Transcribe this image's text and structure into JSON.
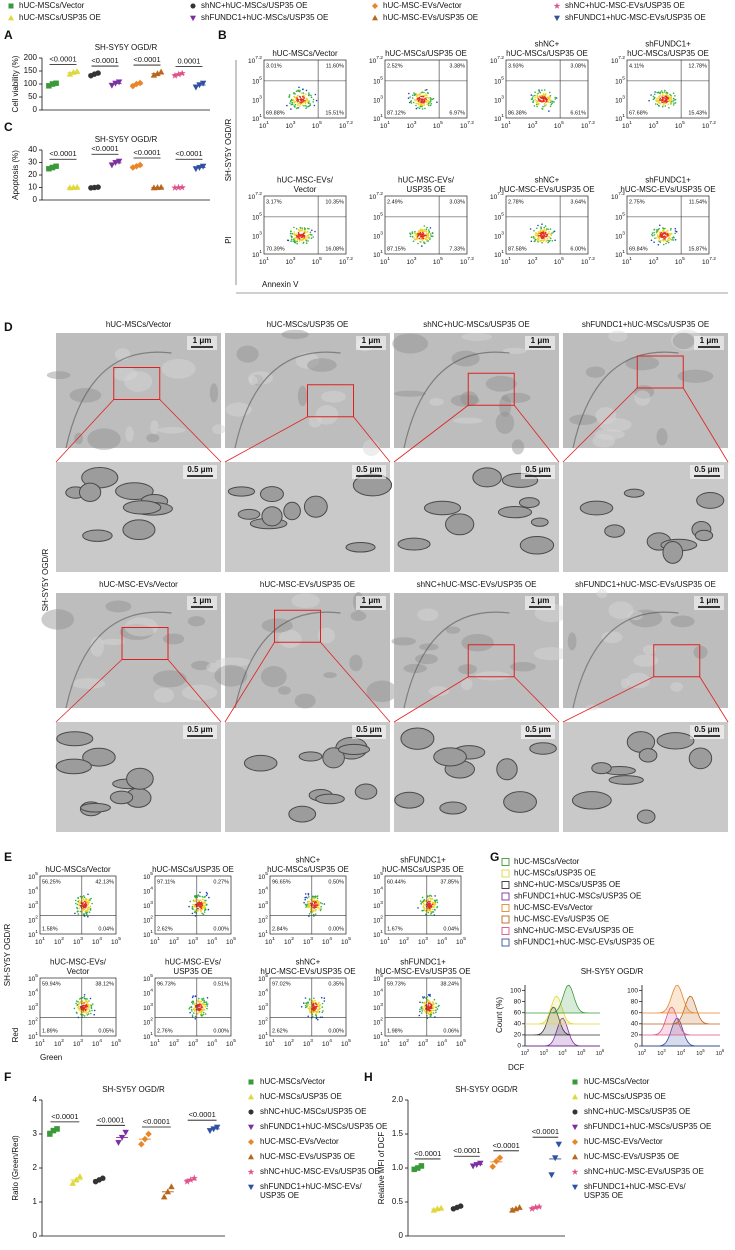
{
  "panel_labels": [
    "A",
    "B",
    "C",
    "D",
    "E",
    "F",
    "G",
    "H"
  ],
  "chart_data": [
    {
      "type": "dot",
      "title": "SH-SY5Y OGD/R",
      "y_label": "Cell viability (%)",
      "ylim": [
        0,
        200
      ],
      "yticks": [
        0,
        50,
        100,
        150,
        200
      ],
      "p_labels": [
        "<0.0001",
        "<0.0001",
        "<0.0001",
        "0.0001"
      ],
      "series": [
        {
          "name": "hUC-MSCs/Vector",
          "color": "#3a9a3a",
          "marker": "square",
          "values": [
            93,
            100,
            103
          ]
        },
        {
          "name": "hUC-MSCs/USP35 OE",
          "color": "#e0d83a",
          "marker": "tri-up",
          "values": [
            138,
            145,
            148
          ]
        },
        {
          "name": "shNC+hUC-MSCs/USP35 OE",
          "color": "#333333",
          "marker": "circle",
          "values": [
            132,
            138,
            142
          ]
        },
        {
          "name": "shFUNDC1+hUC-MSCs/USP35 OE",
          "color": "#7b2fa0",
          "marker": "tri-down",
          "values": [
            95,
            103,
            108
          ]
        },
        {
          "name": "hUC-MSC-EVs/Vector",
          "color": "#e8862a",
          "marker": "diamond",
          "values": [
            92,
            100,
            104
          ]
        },
        {
          "name": "hUC-MSC-EVs/USP35 OE",
          "color": "#b8661c",
          "marker": "tri-up",
          "values": [
            134,
            140,
            146
          ]
        },
        {
          "name": "shNC+hUC-MSC-EVs/USP35 OE",
          "color": "#e0508a",
          "marker": "star",
          "values": [
            132,
            137,
            141
          ]
        },
        {
          "name": "shFUNDC1+hUC-MSC-EVs/USP35 OE",
          "color": "#3050a0",
          "marker": "tri-down",
          "values": [
            88,
            97,
            103
          ]
        }
      ]
    },
    {
      "type": "dot",
      "title": "SH-SY5Y OGD/R",
      "y_label": "Apoptosis (%)",
      "ylim": [
        0,
        40
      ],
      "yticks": [
        0,
        10,
        20,
        30,
        40
      ],
      "p_labels": [
        "<0.0001",
        "<0.0001",
        "<0.0001",
        "<0.0001"
      ],
      "series": [
        {
          "color": "#3a9a3a",
          "marker": "square",
          "values": [
            25,
            26,
            27
          ]
        },
        {
          "color": "#e0d83a",
          "marker": "tri-up",
          "values": [
            9.8,
            10,
            10.2
          ]
        },
        {
          "color": "#333333",
          "marker": "circle",
          "values": [
            9.7,
            10,
            10.3
          ]
        },
        {
          "color": "#7b2fa0",
          "marker": "tri-down",
          "values": [
            28,
            30,
            31
          ]
        },
        {
          "color": "#e8862a",
          "marker": "diamond",
          "values": [
            26,
            27,
            28
          ]
        },
        {
          "color": "#b8661c",
          "marker": "tri-up",
          "values": [
            9.8,
            10,
            10.2
          ]
        },
        {
          "color": "#e0508a",
          "marker": "star",
          "values": [
            9.8,
            10,
            10.1
          ]
        },
        {
          "color": "#3050a0",
          "marker": "tri-down",
          "values": [
            25,
            26,
            27
          ]
        }
      ]
    },
    {
      "type": "dot",
      "title": "SH-SY5Y OGD/R",
      "y_label": "Ratio (Green/Red)",
      "ylim": [
        0,
        4
      ],
      "yticks": [
        0,
        1,
        2,
        3,
        4
      ],
      "p_labels": [
        "<0.0001",
        "<0.0001",
        "<0.0001",
        "<0.0001"
      ],
      "series": [
        {
          "name": "hUC-MSCs/Vector",
          "color": "#3a9a3a",
          "marker": "square",
          "values": [
            3.0,
            3.1,
            3.15
          ]
        },
        {
          "name": "hUC-MSCs/USP35 OE",
          "color": "#e0d83a",
          "marker": "tri-up",
          "values": [
            1.55,
            1.65,
            1.75
          ]
        },
        {
          "name": "shNC+hUC-MSCs/USP35 OE",
          "color": "#333333",
          "marker": "circle",
          "values": [
            1.6,
            1.65,
            1.7
          ]
        },
        {
          "name": "shFUNDC1+hUC-MSCs/USP35 OE",
          "color": "#7b2fa0",
          "marker": "tri-down",
          "values": [
            2.75,
            2.9,
            3.05
          ]
        },
        {
          "name": "hUC-MSC-EVs/Vector",
          "color": "#e8862a",
          "marker": "diamond",
          "values": [
            2.7,
            2.85,
            3.0
          ]
        },
        {
          "name": "hUC-MSC-EVs/USP35 OE",
          "color": "#b8661c",
          "marker": "tri-up",
          "values": [
            1.15,
            1.3,
            1.45
          ]
        },
        {
          "name": "shNC+hUC-MSC-EVs/USP35 OE",
          "color": "#e0508a",
          "marker": "star",
          "values": [
            1.6,
            1.65,
            1.7
          ]
        },
        {
          "name": "shFUNDC1+hUC-MSC-EVs/\nUSP35 OE",
          "color": "#3050a0",
          "marker": "tri-down",
          "values": [
            3.1,
            3.15,
            3.2
          ]
        }
      ]
    },
    {
      "type": "dot",
      "title": "SH-SY5Y OGD/R",
      "y_label": "Relative MFI of DCF",
      "ylim": [
        0,
        2
      ],
      "yticks": [
        0,
        0.5,
        {
          "value": 1,
          "label": "1.0"
        },
        1.5,
        {
          "value": 2,
          "label": "2.0"
        }
      ],
      "p_labels": [
        "<0.0001",
        "<0.0001",
        "<0.0001",
        "<0.0001"
      ],
      "series": [
        {
          "name": "hUC-MSCs/Vector",
          "color": "#3a9a3a",
          "marker": "square",
          "values": [
            0.98,
            1.0,
            1.03
          ]
        },
        {
          "name": "hUC-MSCs/USP35 OE",
          "color": "#e0d83a",
          "marker": "tri-up",
          "values": [
            0.38,
            0.4,
            0.41
          ]
        },
        {
          "name": "shNC+hUC-MSCs/USP35 OE",
          "color": "#333333",
          "marker": "circle",
          "values": [
            0.4,
            0.42,
            0.44
          ]
        },
        {
          "name": "shFUNDC1+hUC-MSCs/USP35 OE",
          "color": "#7b2fa0",
          "marker": "tri-down",
          "values": [
            1.03,
            1.05,
            1.07
          ]
        },
        {
          "name": "hUC-MSC-EVs/Vector",
          "color": "#e8862a",
          "marker": "diamond",
          "values": [
            1.02,
            1.1,
            1.15
          ]
        },
        {
          "name": "hUC-MSC-EVs/USP35 OE",
          "color": "#b8661c",
          "marker": "tri-up",
          "values": [
            0.38,
            0.4,
            0.42
          ]
        },
        {
          "name": "shNC+hUC-MSC-EVs/USP35 OE",
          "color": "#e0508a",
          "marker": "star",
          "values": [
            0.4,
            0.42,
            0.43
          ]
        },
        {
          "name": "shFUNDC1+hUC-MSC-EVs/\nUSP35 OE",
          "color": "#3050a0",
          "marker": "tri-down",
          "values": [
            0.9,
            1.15,
            1.35
          ]
        }
      ]
    }
  ],
  "flow_annexin": {
    "row_label": "SH-SY5Y OGD/R",
    "y_label": "PI",
    "x_label": "Annexin V",
    "ticks": [
      {
        "base": "10",
        "exp": "1"
      },
      {
        "base": "10",
        "exp": "3"
      },
      {
        "base": "10",
        "exp": "5"
      },
      {
        "base": "10",
        "exp": "7.2"
      }
    ],
    "plots": [
      {
        "title": [
          "hUC-MSCs/Vector"
        ],
        "quadrants": [
          "3.01%",
          "11.60%",
          "69.88%",
          "15.51%"
        ]
      },
      {
        "title": [
          "hUC-MSCs/USP35 OE"
        ],
        "quadrants": [
          "2.52%",
          "3.38%",
          "87.12%",
          "6.97%"
        ]
      },
      {
        "title": [
          "shNC+",
          "hUC-MSCs/USP35 OE"
        ],
        "quadrants": [
          "3.93%",
          "3.08%",
          "86.38%",
          "6.61%"
        ]
      },
      {
        "title": [
          "shFUNDC1+",
          "hUC-MSCs/USP35 OE"
        ],
        "quadrants": [
          "4.11%",
          "12.78%",
          "67.68%",
          "15.43%"
        ]
      },
      {
        "title": [
          "hUC-MSC-EVs/",
          "Vector"
        ],
        "quadrants": [
          "3.17%",
          "10.35%",
          "70.39%",
          "16.08%"
        ]
      },
      {
        "title": [
          "hUC-MSC-EVs/",
          "USP35 OE"
        ],
        "quadrants": [
          "2.49%",
          "3.03%",
          "87.15%",
          "7.33%"
        ]
      },
      {
        "title": [
          "shNC+",
          "hUC-MSC-EVs/USP35 OE"
        ],
        "quadrants": [
          "2.78%",
          "3.64%",
          "87.58%",
          "6.00%"
        ]
      },
      {
        "title": [
          "shFUNDC1+",
          "hUC-MSC-EVs/USP35 OE"
        ],
        "quadrants": [
          "2.75%",
          "11.54%",
          "69.84%",
          "15.87%"
        ]
      }
    ]
  },
  "em": {
    "row_label": "SH-SY5Y OGD/R",
    "scale_main": "1 μm",
    "scale_zoom": "0.5 μm",
    "titles": [
      "hUC-MSCs/Vector",
      "hUC-MSCs/USP35 OE",
      "shNC+hUC-MSCs/USP35 OE",
      "shFUNDC1+hUC-MSCs/USP35 OE",
      "hUC-MSC-EVs/Vector",
      "hUC-MSC-EVs/USP35 OE",
      "shNC+hUC-MSC-EVs/USP35 OE",
      "shFUNDC1+hUC-MSC-EVs/USP35 OE"
    ]
  },
  "flow_jc1": {
    "row_label": "SH-SY5Y OGD/R",
    "y_label": "Red",
    "x_label": "Green",
    "ticks": [
      {
        "base": "10",
        "exp": "1"
      },
      {
        "base": "10",
        "exp": "2"
      },
      {
        "base": "10",
        "exp": "3"
      },
      {
        "base": "10",
        "exp": "4"
      },
      {
        "base": "10",
        "exp": "5"
      }
    ],
    "plots": [
      {
        "title": [
          "hUC-MSCs/Vector"
        ],
        "quadrants": [
          "56.25%",
          "42.13%",
          "1.58%",
          "0.04%"
        ]
      },
      {
        "title": [
          "hUC-MSCs/USP35 OE"
        ],
        "quadrants": [
          "97.11%",
          "0.27%",
          "2.62%",
          "0.00%"
        ]
      },
      {
        "title": [
          "shNC+",
          "hUC-MSCs/USP35 OE"
        ],
        "quadrants": [
          "96.65%",
          "0.50%",
          "2.84%",
          "0.00%"
        ]
      },
      {
        "title": [
          "shFUNDC1+",
          "hUC-MSCs/USP35 OE"
        ],
        "quadrants": [
          "60.44%",
          "37.85%",
          "1.67%",
          "0.04%"
        ]
      },
      {
        "title": [
          "hUC-MSC-EVs/",
          "Vector"
        ],
        "quadrants": [
          "59.94%",
          "38.12%",
          "1.89%",
          "0.05%"
        ]
      },
      {
        "title": [
          "hUC-MSC-EVs/",
          "USP35 OE"
        ],
        "quadrants": [
          "96.73%",
          "0.51%",
          "2.76%",
          "0.00%"
        ]
      },
      {
        "title": [
          "shNC+",
          "hUC-MSC-EVs/USP35 OE"
        ],
        "quadrants": [
          "97.02%",
          "0.35%",
          "2.62%",
          "0.00%"
        ]
      },
      {
        "title": [
          "shFUNDC1+",
          "hUC-MSC-EVs/USP35 OE"
        ],
        "quadrants": [
          "59.73%",
          "38.24%",
          "1.98%",
          "0.06%"
        ]
      }
    ]
  },
  "histogram": {
    "title": "SH-SY5Y OGD/R",
    "y_label": "Count (%)",
    "x_label": "DCF",
    "ylim": [
      0,
      110
    ],
    "yticks": [
      0,
      20,
      40,
      60,
      80,
      100
    ],
    "xticks": [
      {
        "base": "10",
        "exp": "2"
      },
      {
        "base": "10",
        "exp": "3"
      },
      {
        "base": "10",
        "exp": "4"
      },
      {
        "base": "10",
        "exp": "5"
      },
      {
        "base": "10",
        "exp": "6"
      }
    ],
    "legend": [
      {
        "name": "hUC-MSCs/Vector",
        "color": "#3a9a3a"
      },
      {
        "name": "hUC-MSCs/USP35 OE",
        "color": "#e0d83a"
      },
      {
        "name": "shNC+hUC-MSCs/USP35 OE",
        "color": "#333333"
      },
      {
        "name": "shFUNDC1+hUC-MSCs/USP35 OE",
        "color": "#7b2fa0"
      },
      {
        "name": "hUC-MSC-EVs/Vector",
        "color": "#e8862a"
      },
      {
        "name": "hUC-MSC-EVs/USP35 OE",
        "color": "#b8661c"
      },
      {
        "name": "shNC+hUC-MSC-EVs/USP35 OE",
        "color": "#e0508a"
      },
      {
        "name": "shFUNDC1+hUC-MSC-EVs/USP35 OE",
        "color": "#3050a0"
      }
    ]
  }
}
